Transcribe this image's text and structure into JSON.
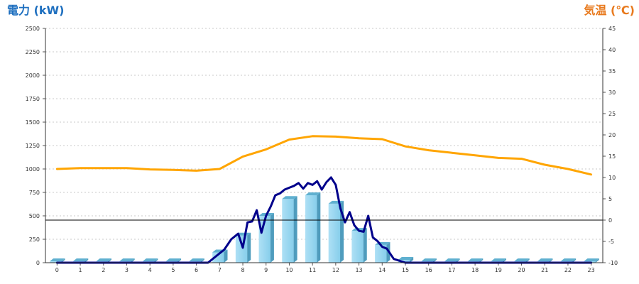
{
  "chart_data": {
    "type": "bar",
    "left_axis": {
      "title": "電力 (kW)",
      "min": 0,
      "max": 2500,
      "step": 250,
      "color": "#1e6fbf"
    },
    "right_axis": {
      "title": "気温 (℃)",
      "min": -10,
      "max": 45,
      "step": 5,
      "color": "#e87a1e"
    },
    "categories": [
      "0",
      "1",
      "2",
      "3",
      "4",
      "5",
      "6",
      "7",
      "8",
      "9",
      "10",
      "11",
      "12",
      "13",
      "14",
      "15",
      "16",
      "17",
      "18",
      "19",
      "20",
      "21",
      "22",
      "23"
    ],
    "grid": true,
    "series": [
      {
        "kind": "bar",
        "axis": "left",
        "color": "#87ceeb",
        "values": [
          15,
          15,
          15,
          15,
          15,
          15,
          15,
          110,
          290,
          500,
          680,
          720,
          630,
          340,
          190,
          30,
          15,
          15,
          15,
          15,
          15,
          15,
          15,
          15
        ]
      },
      {
        "kind": "line",
        "axis": "left",
        "color": "#00008b",
        "x": [
          0,
          1,
          2,
          3,
          4,
          5,
          6,
          6.5,
          7,
          7.2,
          7.5,
          7.8,
          8,
          8.2,
          8.4,
          8.6,
          8.8,
          9,
          9.2,
          9.4,
          9.6,
          9.8,
          10,
          10.2,
          10.4,
          10.6,
          10.8,
          11,
          11.2,
          11.4,
          11.6,
          11.8,
          12,
          12.2,
          12.4,
          12.6,
          12.8,
          13,
          13.2,
          13.4,
          13.6,
          13.8,
          14,
          14.2,
          14.5,
          15,
          16,
          17,
          18,
          19,
          20,
          21,
          22,
          23
        ],
        "values": [
          0,
          0,
          0,
          0,
          0,
          0,
          0,
          0,
          100,
          140,
          250,
          310,
          160,
          430,
          440,
          560,
          320,
          500,
          600,
          720,
          740,
          780,
          800,
          820,
          850,
          790,
          850,
          830,
          870,
          780,
          860,
          910,
          830,
          580,
          430,
          540,
          400,
          340,
          330,
          500,
          270,
          230,
          170,
          150,
          40,
          0,
          0,
          0,
          0,
          0,
          0,
          0,
          0,
          0
        ]
      },
      {
        "kind": "line",
        "axis": "right",
        "color": "#ffa500",
        "x": [
          0,
          1,
          2,
          3,
          4,
          5,
          6,
          7,
          8,
          9,
          10,
          11,
          12,
          13,
          14,
          15,
          16,
          17,
          18,
          19,
          20,
          21,
          22,
          23
        ],
        "values": [
          12.0,
          12.2,
          12.2,
          12.2,
          11.9,
          11.8,
          11.6,
          12.0,
          14.9,
          16.6,
          18.9,
          19.7,
          19.6,
          19.2,
          19.0,
          17.3,
          16.4,
          15.8,
          15.2,
          14.6,
          14.4,
          13.0,
          12.0,
          10.7
        ]
      }
    ]
  }
}
